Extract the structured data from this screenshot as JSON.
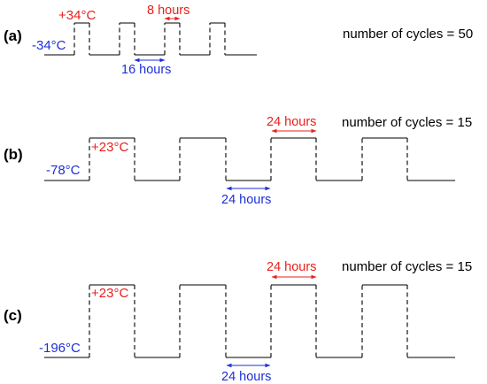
{
  "panels": [
    {
      "label": "(a)",
      "low_temp": "-34°C",
      "high_temp": "+34°C",
      "high_duration": "8 hours",
      "low_duration": "16 hours",
      "cycles_text": "number of cycles = 50"
    },
    {
      "label": "(b)",
      "low_temp": "-78°C",
      "high_temp": "+23°C",
      "high_duration": "24 hours",
      "low_duration": "24 hours",
      "cycles_text": "number of cycles = 15"
    },
    {
      "label": "(c)",
      "low_temp": "-196°C",
      "high_temp": "+23°C",
      "high_duration": "24 hours",
      "low_duration": "24 hours",
      "cycles_text": "number of cycles = 15"
    }
  ],
  "colors": {
    "high": "#e8201c",
    "low": "#1c2fd8",
    "wave": "#000000"
  }
}
